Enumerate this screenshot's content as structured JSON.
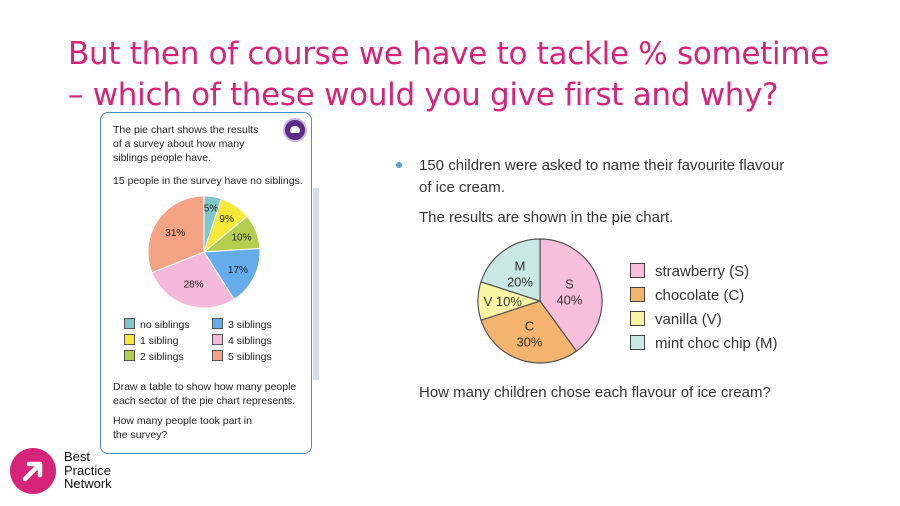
{
  "title": {
    "line1": "But then of course we have to tackle % sometime",
    "line2": "– which of these would you give first and why?"
  },
  "left_card": {
    "intro": [
      "The pie chart shows the results",
      "of a survey about how many",
      "siblings people have."
    ],
    "note": "15 people in the survey have no siblings.",
    "question1": [
      "Draw a table to show how many people",
      "each sector of the pie chart represents."
    ],
    "question2": [
      "How many people took part in",
      "the survey?"
    ],
    "badge_icon": "thinking-cloud-icon"
  },
  "right_panel": {
    "line1": "150 children were asked to name their favourite flavour",
    "line2": "of ice cream.",
    "line3": "The results are shown in the pie chart.",
    "question": "How many children chose each flavour of ice cream?"
  },
  "logo": {
    "line1": "Best",
    "line2": "Practice",
    "line3": "Network",
    "color": "#d6247a"
  },
  "chart_data": [
    {
      "type": "pie",
      "categories": [
        "no siblings",
        "1 sibling",
        "2 siblings",
        "3 siblings",
        "4 siblings",
        "5 siblings"
      ],
      "values": [
        5,
        9,
        10,
        17,
        28,
        31
      ],
      "labels": [
        "5%",
        "9%",
        "10%",
        "17%",
        "28%",
        "31%"
      ],
      "colors": [
        "#7fc6c8",
        "#f6e83a",
        "#b2cf4e",
        "#64acea",
        "#f4b8d8",
        "#f4a384"
      ],
      "legend_position": "bottom"
    },
    {
      "type": "pie",
      "categories": [
        "strawberry (S)",
        "chocolate (C)",
        "vanilla (V)",
        "mint choc chip (M)"
      ],
      "values": [
        40,
        30,
        10,
        20
      ],
      "slice_labels": [
        [
          "S",
          "40%"
        ],
        [
          "C",
          "30%"
        ],
        [
          "V 10%"
        ],
        [
          "M",
          "20%"
        ]
      ],
      "colors": [
        "#f7bfdc",
        "#f3b46e",
        "#fbf5a6",
        "#c9e7e3"
      ],
      "legend_position": "right"
    }
  ]
}
